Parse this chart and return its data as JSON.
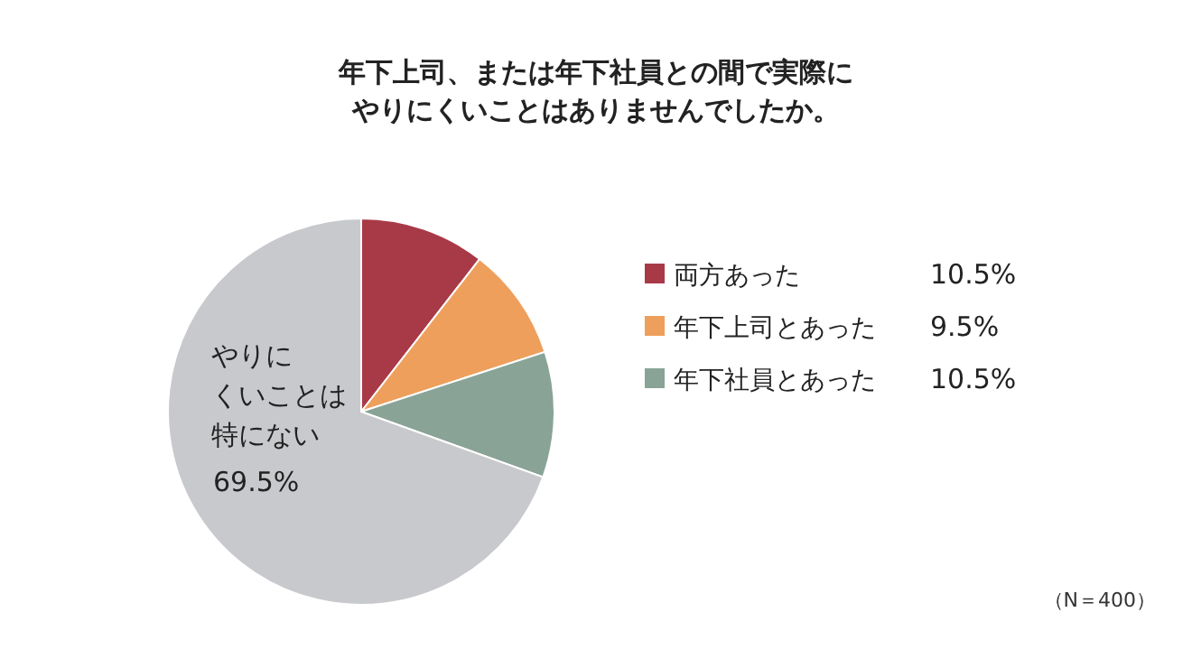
{
  "chart_data": {
    "type": "pie",
    "title": "年下上司、または年下社員との間で実際にやりにくいことはありませんでしたか。",
    "categories": [
      "両方あった",
      "年下上司とあった",
      "年下社員とあった",
      "やりにくいことは特にない"
    ],
    "values": [
      10.5,
      9.5,
      10.5,
      69.5
    ],
    "colors": [
      "#a83a48",
      "#ee9f5c",
      "#89a397",
      "#c8c9cc"
    ],
    "value_labels": [
      "10.5%",
      "9.5%",
      "10.5%",
      "69.5%"
    ],
    "legend": "right",
    "annotations": [
      "（N＝400）"
    ]
  }
}
